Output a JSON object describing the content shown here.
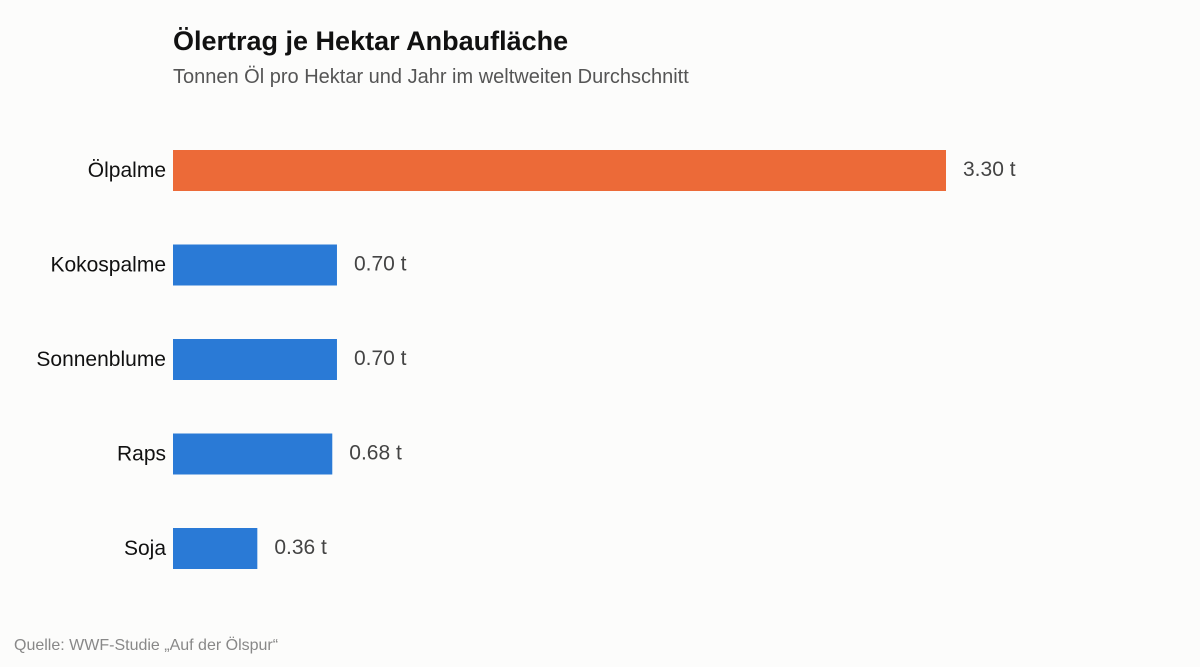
{
  "header": {
    "title": "Ölertrag je Hektar Anbaufläche",
    "subtitle": "Tonnen Öl pro Hektar und Jahr im weltweiten Durchschnitt"
  },
  "chart_data": {
    "type": "bar",
    "orientation": "horizontal",
    "title": "Ölertrag je Hektar Anbaufläche",
    "subtitle": "Tonnen Öl pro Hektar und Jahr im weltweiten Durchschnitt",
    "categories": [
      "Ölpalme",
      "Kokospalme",
      "Sonnenblume",
      "Raps",
      "Soja"
    ],
    "values": [
      3.3,
      0.7,
      0.7,
      0.68,
      0.36
    ],
    "value_labels": [
      "3.30 t",
      "0.70 t",
      "0.70 t",
      "0.68 t",
      "0.36 t"
    ],
    "unit": "t",
    "xlim": [
      0,
      3.3
    ],
    "grid": false,
    "legend": "none",
    "colors": {
      "highlight": "#ec6a38",
      "default": "#2a7ad6"
    },
    "highlight_index": 0
  },
  "footer": {
    "source": "Quelle: WWF-Studie „Auf der Ölspur“"
  }
}
